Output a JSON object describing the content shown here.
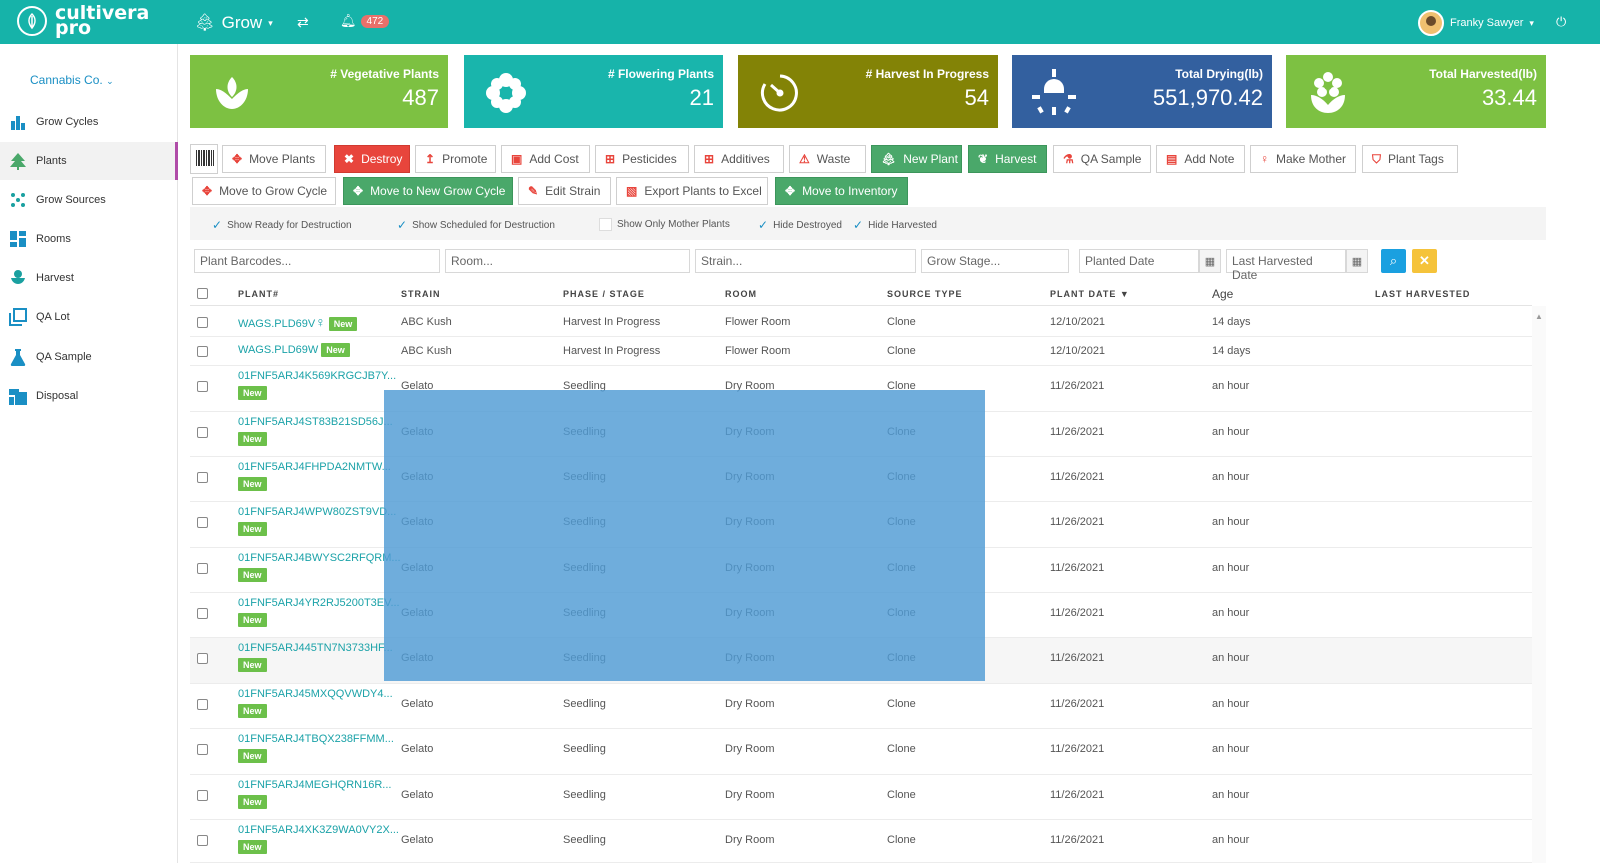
{
  "brand": {
    "line1": "cultivera",
    "line2": "pro"
  },
  "topnav": {
    "module": "Grow",
    "notifications": "472",
    "user": "Franky Sawyer"
  },
  "sidebar": {
    "company": "Cannabis Co.",
    "items": [
      {
        "label": "Grow Cycles",
        "icon": "bar-chart-icon"
      },
      {
        "label": "Plants",
        "icon": "tree-icon"
      },
      {
        "label": "Grow Sources",
        "icon": "seeds-icon"
      },
      {
        "label": "Rooms",
        "icon": "rooms-icon"
      },
      {
        "label": "Harvest",
        "icon": "harvest-icon"
      },
      {
        "label": "QA Lot",
        "icon": "qa-lot-icon"
      },
      {
        "label": "QA Sample",
        "icon": "flask-icon"
      },
      {
        "label": "Disposal",
        "icon": "disposal-icon"
      }
    ]
  },
  "stats": [
    {
      "label": "# Vegetative Plants",
      "value": "487",
      "color": "#7dc142",
      "icon": "sprout-icon"
    },
    {
      "label": "# Flowering Plants",
      "value": "21",
      "color": "#19b5ac",
      "icon": "flower-icon"
    },
    {
      "label": "# Harvest In Progress",
      "value": "54",
      "color": "#838306",
      "icon": "timer-icon"
    },
    {
      "label": "Total Drying(lb)",
      "value": "551,970.42",
      "color": "#33609f",
      "icon": "sun-icon"
    },
    {
      "label": "Total Harvested(lb)",
      "value": "33.44",
      "color": "#7dc142",
      "icon": "harvested-flower-icon"
    }
  ],
  "toolbar": {
    "row1": [
      "Move Plants",
      "Destroy",
      "Promote",
      "Add Cost",
      "Pesticides",
      "Additives",
      "Waste",
      "New Plant",
      "Harvest",
      "QA Sample",
      "Add Note",
      "Make Mother",
      "Plant Tags"
    ],
    "row2": [
      "Move to Grow Cycle",
      "Move to New Grow Cycle",
      "Edit Strain",
      "Export Plants to Excel",
      "Move to Inventory"
    ]
  },
  "filters": {
    "checks": [
      {
        "label": "Show Ready for Destruction",
        "checked": true
      },
      {
        "label": "Show Scheduled for Destruction",
        "checked": true
      },
      {
        "label": "Show Only Mother Plants",
        "checked": false
      },
      {
        "label": "Hide Destroyed",
        "checked": true
      },
      {
        "label": "Hide Harvested",
        "checked": true
      }
    ],
    "placeholders": {
      "barcodes": "Plant Barcodes...",
      "room": "Room...",
      "strain": "Strain...",
      "stage": "Grow Stage...",
      "planted": "Planted Date",
      "harvested": "Last Harvested Date"
    }
  },
  "table": {
    "headers": [
      "PLANT#",
      "STRAIN",
      "PHASE / STAGE",
      "ROOM",
      "SOURCE TYPE",
      "PLANT DATE",
      "Age",
      "LAST HARVESTED"
    ],
    "sort_indicator": "▼",
    "new_label": "New",
    "rows": [
      {
        "plant": "WAGS.PLD69V",
        "strain": "ABC Kush",
        "stage": "Harvest In Progress",
        "room": "Flower Room",
        "source": "Clone",
        "date": "12/10/2021",
        "age": "14 days",
        "mother": true
      },
      {
        "plant": "WAGS.PLD69W",
        "strain": "ABC Kush",
        "stage": "Harvest In Progress",
        "room": "Flower Room",
        "source": "Clone",
        "date": "12/10/2021",
        "age": "14 days",
        "mother": false
      },
      {
        "plant": "01FNF5ARJ4K569KRGCJB7Y...",
        "strain": "Gelato",
        "stage": "Seedling",
        "room": "Dry Room",
        "source": "Clone",
        "date": "11/26/2021",
        "age": "an hour"
      },
      {
        "plant": "01FNF5ARJ4ST83B21SD56J...",
        "strain": "Gelato",
        "stage": "Seedling",
        "room": "Dry Room",
        "source": "Clone",
        "date": "11/26/2021",
        "age": "an hour"
      },
      {
        "plant": "01FNF5ARJ4FHPDA2NMTW...",
        "strain": "Gelato",
        "stage": "Seedling",
        "room": "Dry Room",
        "source": "Clone",
        "date": "11/26/2021",
        "age": "an hour"
      },
      {
        "plant": "01FNF5ARJ4WPW80ZST9VD...",
        "strain": "Gelato",
        "stage": "Seedling",
        "room": "Dry Room",
        "source": "Clone",
        "date": "11/26/2021",
        "age": "an hour"
      },
      {
        "plant": "01FNF5ARJ4BWYSC2RFQRM...",
        "strain": "Gelato",
        "stage": "Seedling",
        "room": "Dry Room",
        "source": "Clone",
        "date": "11/26/2021",
        "age": "an hour"
      },
      {
        "plant": "01FNF5ARJ4YR2RJ5200T3EV...",
        "strain": "Gelato",
        "stage": "Seedling",
        "room": "Dry Room",
        "source": "Clone",
        "date": "11/26/2021",
        "age": "an hour"
      },
      {
        "plant": "01FNF5ARJ445TN7N3733HF...",
        "strain": "Gelato",
        "stage": "Seedling",
        "room": "Dry Room",
        "source": "Clone",
        "date": "11/26/2021",
        "age": "an hour"
      },
      {
        "plant": "01FNF5ARJ45MXQQVWDY4...",
        "strain": "Gelato",
        "stage": "Seedling",
        "room": "Dry Room",
        "source": "Clone",
        "date": "11/26/2021",
        "age": "an hour"
      },
      {
        "plant": "01FNF5ARJ4TBQX238FFMM...",
        "strain": "Gelato",
        "stage": "Seedling",
        "room": "Dry Room",
        "source": "Clone",
        "date": "11/26/2021",
        "age": "an hour"
      },
      {
        "plant": "01FNF5ARJ4MEGHQRN16R...",
        "strain": "Gelato",
        "stage": "Seedling",
        "room": "Dry Room",
        "source": "Clone",
        "date": "11/26/2021",
        "age": "an hour"
      },
      {
        "plant": "01FNF5ARJ4XK3Z9WA0VY2X...",
        "strain": "Gelato",
        "stage": "Seedling",
        "room": "Dry Room",
        "source": "Clone",
        "date": "11/26/2021",
        "age": "an hour"
      }
    ]
  }
}
